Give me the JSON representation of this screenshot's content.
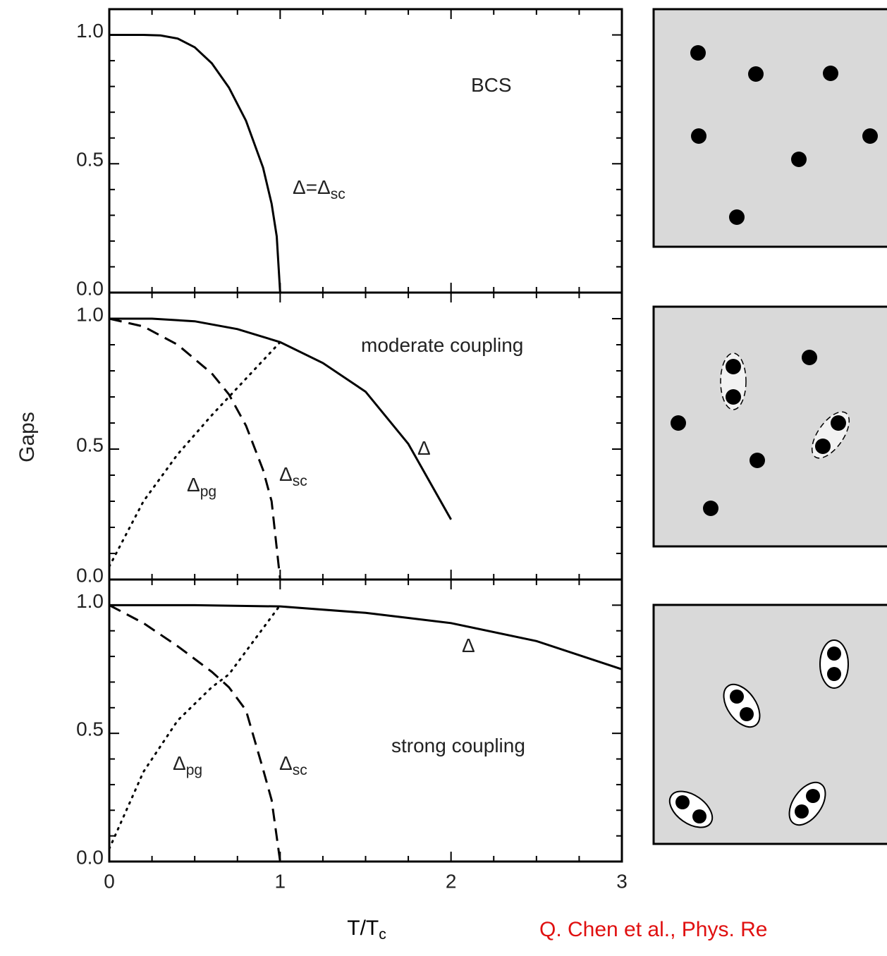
{
  "chart_data": [
    {
      "type": "line",
      "xlim": [
        0,
        3
      ],
      "ylim": [
        0,
        1.1
      ],
      "xticks": [
        0,
        1,
        2,
        3
      ],
      "minor_xticks": [
        0.25,
        0.5,
        0.75,
        1.25,
        1.5,
        1.75,
        2.25,
        2.5,
        2.75
      ],
      "yticks": [
        {
          "value": 0,
          "label": "0.0"
        },
        {
          "value": 0.5,
          "label": "0.5"
        },
        {
          "value": 1,
          "label": "1.0"
        }
      ],
      "minor_yticks": [
        0.1,
        0.2,
        0.3,
        0.4,
        0.6,
        0.7,
        0.8,
        0.9
      ],
      "series": [
        {
          "color": "#000000",
          "style": "solid",
          "x": [
            0,
            0.1,
            0.2,
            0.3,
            0.4,
            0.5,
            0.6,
            0.7,
            0.8,
            0.9,
            0.95,
            0.98,
            1.0
          ],
          "values": [
            1,
            1,
            1,
            0.998,
            0.986,
            0.952,
            0.89,
            0.796,
            0.667,
            0.485,
            0.345,
            0.218,
            0
          ]
        }
      ],
      "annotations": [
        {
          "text": "BCS"
        },
        {
          "text": "Δ=Δ",
          "sub": "sc"
        }
      ]
    },
    {
      "type": "line",
      "xlim": [
        0,
        3
      ],
      "ylim": [
        0,
        1.1
      ],
      "xticks": [
        0,
        1,
        2,
        3
      ],
      "minor_xticks": [
        0.25,
        0.5,
        0.75,
        1.25,
        1.5,
        1.75,
        2.25,
        2.5,
        2.75
      ],
      "yticks": [
        {
          "value": 0,
          "label": "0.0"
        },
        {
          "value": 0.5,
          "label": "0.5"
        },
        {
          "value": 1,
          "label": "1.0"
        }
      ],
      "minor_yticks": [
        0.1,
        0.2,
        0.3,
        0.4,
        0.6,
        0.7,
        0.8,
        0.9
      ],
      "y_label": "Gaps",
      "series": [
        {
          "color": "#000000",
          "style": "solid",
          "x": [
            0,
            0.25,
            0.5,
            0.75,
            1,
            1.25,
            1.5,
            1.75,
            2
          ],
          "values": [
            1,
            1,
            0.99,
            0.96,
            0.91,
            0.83,
            0.72,
            0.52,
            0.23
          ]
        },
        {
          "color": "#000000",
          "style": "dashed",
          "x": [
            0,
            0.2,
            0.4,
            0.6,
            0.7,
            0.8,
            0.9,
            0.95,
            1.0
          ],
          "values": [
            1,
            0.97,
            0.9,
            0.79,
            0.71,
            0.59,
            0.42,
            0.3,
            0
          ]
        },
        {
          "color": "#000000",
          "style": "dotted",
          "x": [
            0,
            0.2,
            0.4,
            0.6,
            0.7,
            0.8,
            1.0
          ],
          "values": [
            0.05,
            0.3,
            0.48,
            0.63,
            0.7,
            0.77,
            0.91
          ]
        }
      ],
      "annotations": [
        {
          "text": "moderate coupling"
        },
        {
          "text": "Δ"
        },
        {
          "text": "Δ",
          "sub": "sc"
        },
        {
          "text": "Δ",
          "sub": "pg"
        }
      ]
    },
    {
      "type": "line",
      "xlim": [
        0,
        3
      ],
      "ylim": [
        0,
        1.1
      ],
      "xticks": [
        0,
        1,
        2,
        3
      ],
      "minor_xticks": [
        0.25,
        0.5,
        0.75,
        1.25,
        1.5,
        1.75,
        2.25,
        2.5,
        2.75
      ],
      "show_x_tick_labels": true,
      "yticks": [
        {
          "value": 0,
          "label": "0.0"
        },
        {
          "value": 0.5,
          "label": "0.5"
        },
        {
          "value": 1,
          "label": "1.0"
        }
      ],
      "minor_yticks": [
        0.1,
        0.2,
        0.3,
        0.4,
        0.6,
        0.7,
        0.8,
        0.9
      ],
      "x_label": "T/T",
      "x_label_sub": "c",
      "series": [
        {
          "color": "#000000",
          "style": "solid",
          "x": [
            0,
            0.5,
            1,
            1.5,
            1.75,
            2,
            2.5,
            3
          ],
          "values": [
            1,
            1,
            0.995,
            0.97,
            0.95,
            0.93,
            0.86,
            0.75
          ]
        },
        {
          "color": "#000000",
          "style": "dashed",
          "x": [
            0,
            0.2,
            0.4,
            0.6,
            0.7,
            0.8,
            0.9,
            0.95,
            1.0
          ],
          "values": [
            1,
            0.93,
            0.84,
            0.74,
            0.68,
            0.59,
            0.36,
            0.24,
            0
          ]
        },
        {
          "color": "#000000",
          "style": "dotted",
          "x": [
            0,
            0.2,
            0.4,
            0.6,
            0.7,
            0.8,
            1.0
          ],
          "values": [
            0.05,
            0.35,
            0.55,
            0.68,
            0.73,
            0.82,
            1.0
          ]
        }
      ],
      "annotations": [
        {
          "text": "Δ"
        },
        {
          "text": "strong coupling"
        },
        {
          "text": "Δ",
          "sub": "pg"
        },
        {
          "text": "Δ",
          "sub": "sc"
        }
      ]
    }
  ],
  "citation": "Q. Chen et al., Phys. Re"
}
